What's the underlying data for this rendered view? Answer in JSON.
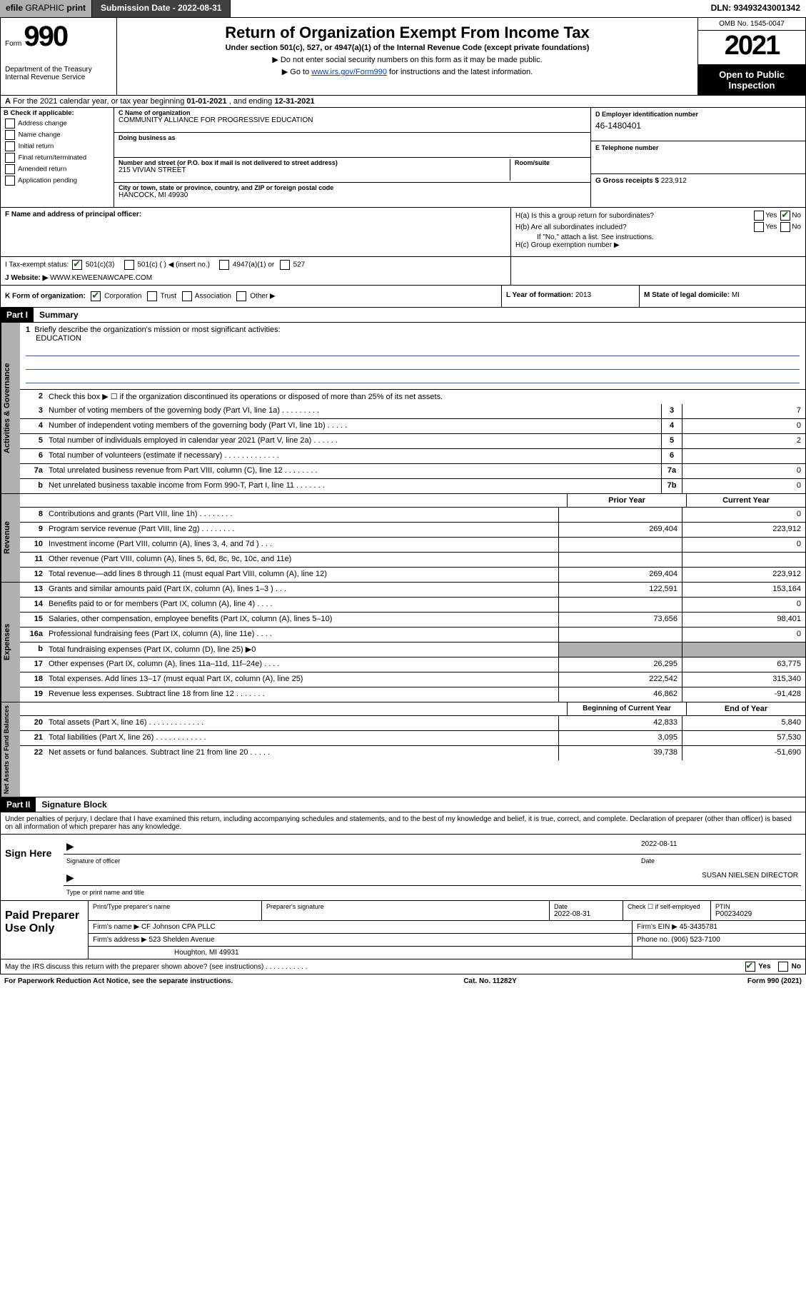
{
  "topbar": {
    "efile_prefix": "efile",
    "efile_rest": " GRAPHIC ",
    "print": "print",
    "submission_label": "Submission Date - ",
    "submission_date": "2022-08-31",
    "dln_label": "DLN: ",
    "dln": "93493243001342"
  },
  "header": {
    "form_label": "Form",
    "form_num": "990",
    "dept": "Department of the Treasury\nInternal Revenue Service",
    "title": "Return of Organization Exempt From Income Tax",
    "sub": "Under section 501(c), 527, or 4947(a)(1) of the Internal Revenue Code (except private foundations)",
    "instr1": "▶ Do not enter social security numbers on this form as it may be made public.",
    "instr2_pre": "▶ Go to ",
    "instr2_link": "www.irs.gov/Form990",
    "instr2_post": " for instructions and the latest information.",
    "omb": "OMB No. 1545-0047",
    "year": "2021",
    "otp": "Open to Public Inspection"
  },
  "row_a": {
    "label_a": "A",
    "text": " For the 2021 calendar year, or tax year beginning ",
    "begin": "01-01-2021",
    "mid": " , and ending ",
    "end": "12-31-2021"
  },
  "col_b": {
    "heading": "B Check if applicable:",
    "items": [
      "Address change",
      "Name change",
      "Initial return",
      "Final return/terminated",
      "Amended return",
      "Application pending"
    ]
  },
  "col_c": {
    "name_lbl": "C Name of organization",
    "name": "COMMUNITY ALLIANCE FOR PROGRESSIVE EDUCATION",
    "dba_lbl": "Doing business as",
    "dba": "",
    "street_lbl": "Number and street (or P.O. box if mail is not delivered to street address)",
    "room_lbl": "Room/suite",
    "street": "215 VIVIAN STREET",
    "city_lbl": "City or town, state or province, country, and ZIP or foreign postal code",
    "city": "HANCOCK, MI  49930"
  },
  "col_de": {
    "d_lbl": "D Employer identification number",
    "d_val": "46-1480401",
    "e_lbl": "E Telephone number",
    "e_val": "",
    "g_lbl": "G Gross receipts $ ",
    "g_val": "223,912"
  },
  "row_f": {
    "lbl": "F Name and address of principal officer:",
    "val": ""
  },
  "row_h": {
    "ha": "H(a)  Is this a group return for subordinates?",
    "hb": "H(b)  Are all subordinates included?",
    "hb_note": "If \"No,\" attach a list. See instructions.",
    "hc": "H(c)  Group exemption number ▶",
    "yes": "Yes",
    "no": "No"
  },
  "row_i": {
    "lbl": "I    Tax-exempt status:",
    "opts": [
      "501(c)(3)",
      "501(c) (   ) ◀ (insert no.)",
      "4947(a)(1) or",
      "527"
    ]
  },
  "row_j": {
    "lbl": "J    Website: ▶ ",
    "val": "WWW.KEWEENAWCAPE.COM"
  },
  "row_k": {
    "lbl": "K Form of organization:",
    "opts": [
      "Corporation",
      "Trust",
      "Association",
      "Other ▶"
    ],
    "l_lbl": "L Year of formation: ",
    "l_val": "2013",
    "m_lbl": "M State of legal domicile: ",
    "m_val": "MI"
  },
  "part1": {
    "bar": "Part I",
    "title": "Summary",
    "gov_label": "Activities & Governance",
    "rev_label": "Revenue",
    "exp_label": "Expenses",
    "na_label": "Net Assets or Fund Balances",
    "line1": "Briefly describe the organization's mission or most significant activities:",
    "mission": "EDUCATION",
    "line2": "Check this box ▶ ☐  if the organization discontinued its operations or disposed of more than 25% of its net assets.",
    "lines": [
      {
        "n": "3",
        "t": "Number of voting members of the governing body (Part VI, line 1a)   .    .    .    .    .    .    .    .    .",
        "box": "3",
        "v": "7"
      },
      {
        "n": "4",
        "t": "Number of independent voting members of the governing body (Part VI, line 1b)   .    .    .    .    .",
        "box": "4",
        "v": "0"
      },
      {
        "n": "5",
        "t": "Total number of individuals employed in calendar year 2021 (Part V, line 2a)   .    .    .    .    .    .",
        "box": "5",
        "v": "2"
      },
      {
        "n": "6",
        "t": "Total number of volunteers (estimate if necessary)   .    .    .    .    .    .    .    .    .    .    .    .    .",
        "box": "6",
        "v": ""
      },
      {
        "n": "7a",
        "t": "Total unrelated business revenue from Part VIII, column (C), line 12   .    .    .    .    .    .    .    .",
        "box": "7a",
        "v": "0"
      },
      {
        "n": "b",
        "t": "Net unrelated business taxable income from Form 990-T, Part I, line 11   .    .    .    .    .    .    .",
        "box": "7b",
        "v": "0"
      }
    ],
    "py_label": "Prior Year",
    "cy_label": "Current Year",
    "rev_lines": [
      {
        "n": "8",
        "t": "Contributions and grants (Part VIII, line 1h)   .    .    .    .    .    .    .    .",
        "py": "",
        "cy": "0"
      },
      {
        "n": "9",
        "t": "Program service revenue (Part VIII, line 2g)   .    .    .    .    .    .    .    .",
        "py": "269,404",
        "cy": "223,912"
      },
      {
        "n": "10",
        "t": "Investment income (Part VIII, column (A), lines 3, 4, and 7d )   .    .    .",
        "py": "",
        "cy": "0"
      },
      {
        "n": "11",
        "t": "Other revenue (Part VIII, column (A), lines 5, 6d, 8c, 9c, 10c, and 11e)",
        "py": "",
        "cy": ""
      },
      {
        "n": "12",
        "t": "Total revenue—add lines 8 through 11 (must equal Part VIII, column (A), line 12)",
        "py": "269,404",
        "cy": "223,912"
      }
    ],
    "exp_lines": [
      {
        "n": "13",
        "t": "Grants and similar amounts paid (Part IX, column (A), lines 1–3 )   .    .    .",
        "py": "122,591",
        "cy": "153,164"
      },
      {
        "n": "14",
        "t": "Benefits paid to or for members (Part IX, column (A), line 4)   .    .    .    .",
        "py": "",
        "cy": "0"
      },
      {
        "n": "15",
        "t": "Salaries, other compensation, employee benefits (Part IX, column (A), lines 5–10)",
        "py": "73,656",
        "cy": "98,401"
      },
      {
        "n": "16a",
        "t": "Professional fundraising fees (Part IX, column (A), line 11e)   .    .    .    .",
        "py": "",
        "cy": "0"
      },
      {
        "n": "b",
        "t": "Total fundraising expenses (Part IX, column (D), line 25) ▶0",
        "py": "shade",
        "cy": "shade"
      },
      {
        "n": "17",
        "t": "Other expenses (Part IX, column (A), lines 11a–11d, 11f–24e)   .    .    .    .",
        "py": "26,295",
        "cy": "63,775"
      },
      {
        "n": "18",
        "t": "Total expenses. Add lines 13–17 (must equal Part IX, column (A), line 25)",
        "py": "222,542",
        "cy": "315,340"
      },
      {
        "n": "19",
        "t": "Revenue less expenses. Subtract line 18 from line 12   .    .    .    .    .    .    .",
        "py": "46,862",
        "cy": "-91,428"
      }
    ],
    "boc_label": "Beginning of Current Year",
    "eoy_label": "End of Year",
    "na_lines": [
      {
        "n": "20",
        "t": "Total assets (Part X, line 16)   .    .    .    .    .    .    .    .    .    .    .    .    .",
        "py": "42,833",
        "cy": "5,840"
      },
      {
        "n": "21",
        "t": "Total liabilities (Part X, line 26)   .    .    .    .    .    .    .    .    .    .    .    .",
        "py": "3,095",
        "cy": "57,530"
      },
      {
        "n": "22",
        "t": "Net assets or fund balances. Subtract line 21 from line 20   .    .    .    .    .",
        "py": "39,738",
        "cy": "-51,690"
      }
    ]
  },
  "part2": {
    "bar": "Part II",
    "title": "Signature Block",
    "decl": "Under penalties of perjury, I declare that I have examined this return, including accompanying schedules and statements, and to the best of my knowledge and belief, it is true, correct, and complete. Declaration of preparer (other than officer) is based on all information of which preparer has any knowledge.",
    "sign_here": "Sign Here",
    "sig_officer_lbl": "Signature of officer",
    "sig_date": "2022-08-11",
    "date_lbl": "Date",
    "officer_name": "SUSAN NIELSEN  DIRECTOR",
    "officer_lbl": "Type or print name and title",
    "paid_label": "Paid Preparer Use Only",
    "prep_name_lbl": "Print/Type preparer's name",
    "prep_name": "",
    "prep_sig_lbl": "Preparer's signature",
    "prep_date_lbl": "Date",
    "prep_date": "2022-08-31",
    "check_lbl": "Check ☐ if self-employed",
    "ptin_lbl": "PTIN",
    "ptin": "P00234029",
    "firm_name_lbl": "Firm's name      ▶ ",
    "firm_name": "CF Johnson CPA PLLC",
    "firm_ein_lbl": "Firm's EIN ▶ ",
    "firm_ein": "45-3435781",
    "firm_addr_lbl": "Firm's address ▶ ",
    "firm_addr1": "523 Shelden Avenue",
    "firm_addr2": "Houghton, MI  49931",
    "phone_lbl": "Phone no. ",
    "phone": "(906) 523-7100",
    "discuss": "May the IRS discuss this return with the preparer shown above? (see instructions)   .    .    .    .    .    .    .    .    .    .    .",
    "discuss_yes": "Yes",
    "discuss_no": "No"
  },
  "footer": {
    "left": "For Paperwork Reduction Act Notice, see the separate instructions.",
    "mid": "Cat. No. 11282Y",
    "right": "Form 990 (2021)"
  }
}
